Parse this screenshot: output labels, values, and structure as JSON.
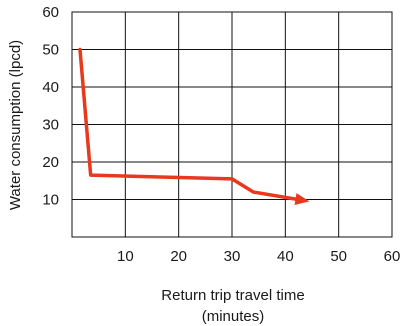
{
  "chart_data": {
    "type": "line",
    "title": "",
    "xlabel_line1": "Return trip travel time",
    "xlabel_line2": "(minutes)",
    "ylabel": "Water consumption (lpcd)",
    "xlim": [
      0,
      60
    ],
    "ylim": [
      0,
      60
    ],
    "x_ticks": [
      "10",
      "20",
      "30",
      "40",
      "50",
      "60"
    ],
    "y_ticks": [
      "10",
      "20",
      "30",
      "40",
      "50",
      "60"
    ],
    "grid": true,
    "line_color": "#e8391d",
    "series": [
      {
        "points": [
          {
            "x": 1.5,
            "y": 50
          },
          {
            "x": 3.5,
            "y": 16.5
          },
          {
            "x": 30,
            "y": 15.5
          },
          {
            "x": 34,
            "y": 12
          },
          {
            "x": 44.5,
            "y": 9.5
          }
        ],
        "arrow_end": true
      }
    ]
  }
}
